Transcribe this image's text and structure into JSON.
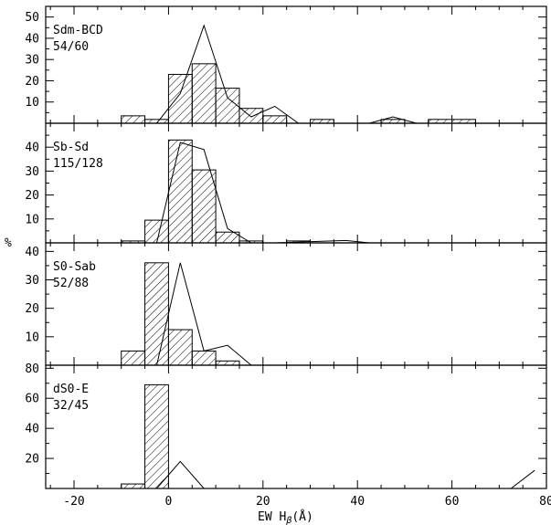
{
  "chart_data": {
    "type": "bar",
    "xlabel": "EW H",
    "xlabel_sub": "β",
    "xlabel_unit": "(Å)",
    "ylabel": "%",
    "xlim": [
      -26,
      80
    ],
    "bin_width": 5,
    "x_ticks": [
      -20,
      0,
      20,
      40,
      60,
      80
    ],
    "panels": [
      {
        "label": "Sdm-BCD",
        "count": "54/60",
        "ylim": [
          0,
          55
        ],
        "y_ticks": [
          10,
          20,
          30,
          40,
          50
        ],
        "bars": [
          {
            "x0": -10,
            "x1": -5,
            "value": 3.5
          },
          {
            "x0": -5,
            "x1": 0,
            "value": 1.8
          },
          {
            "x0": 0,
            "x1": 5,
            "value": 23
          },
          {
            "x0": 5,
            "x1": 10,
            "value": 28
          },
          {
            "x0": 10,
            "x1": 15,
            "value": 16.5
          },
          {
            "x0": 15,
            "x1": 20,
            "value": 7
          },
          {
            "x0": 20,
            "x1": 25,
            "value": 3.5
          },
          {
            "x0": 30,
            "x1": 35,
            "value": 1.8
          },
          {
            "x0": 45,
            "x1": 50,
            "value": 1.8
          },
          {
            "x0": 55,
            "x1": 65,
            "value": 1.8
          }
        ],
        "line": [
          [
            -2.5,
            0
          ],
          [
            2.5,
            14
          ],
          [
            7.5,
            46
          ],
          [
            12.5,
            12
          ],
          [
            17.5,
            3
          ],
          [
            22.5,
            8
          ],
          [
            27.5,
            0
          ],
          [
            42.5,
            0
          ],
          [
            47.5,
            3
          ],
          [
            52.5,
            0
          ]
        ]
      },
      {
        "label": "Sb-Sd",
        "count": "115/128",
        "ylim": [
          0,
          50
        ],
        "y_ticks": [
          10,
          20,
          30,
          40
        ],
        "bars": [
          {
            "x0": -10,
            "x1": -5,
            "value": 0.8
          },
          {
            "x0": -5,
            "x1": 0,
            "value": 9.5
          },
          {
            "x0": 0,
            "x1": 5,
            "value": 43
          },
          {
            "x0": 5,
            "x1": 10,
            "value": 30.5
          },
          {
            "x0": 10,
            "x1": 15,
            "value": 4.5
          },
          {
            "x0": 15,
            "x1": 20,
            "value": 0.8
          },
          {
            "x0": 25,
            "x1": 30,
            "value": 0.8
          }
        ],
        "line": [
          [
            -2.5,
            0
          ],
          [
            2.5,
            42
          ],
          [
            7.5,
            39
          ],
          [
            12.5,
            6
          ],
          [
            17.5,
            0
          ],
          [
            22.5,
            0
          ],
          [
            37.5,
            1
          ],
          [
            42.5,
            0
          ]
        ]
      },
      {
        "label": "S0-Sab",
        "count": "52/88",
        "ylim": [
          0,
          43
        ],
        "y_ticks": [
          10,
          20,
          30,
          40
        ],
        "bars": [
          {
            "x0": -10,
            "x1": -5,
            "value": 5
          },
          {
            "x0": -5,
            "x1": 0,
            "value": 36
          },
          {
            "x0": 0,
            "x1": 5,
            "value": 12.5
          },
          {
            "x0": 5,
            "x1": 10,
            "value": 5
          },
          {
            "x0": 10,
            "x1": 15,
            "value": 1.5
          }
        ],
        "line": [
          [
            -2.5,
            0
          ],
          [
            2.5,
            36
          ],
          [
            7.5,
            5
          ],
          [
            12.5,
            7
          ],
          [
            17.5,
            0
          ]
        ]
      },
      {
        "label": "dS0-E",
        "count": "32/45",
        "ylim": [
          0,
          82
        ],
        "y_ticks": [
          20,
          40,
          60,
          80
        ],
        "bars": [
          {
            "x0": -10,
            "x1": -5,
            "value": 3
          },
          {
            "x0": -5,
            "x1": 0,
            "value": 69
          }
        ],
        "line": [
          [
            -2.5,
            0
          ],
          [
            2.5,
            18
          ],
          [
            7.5,
            0
          ],
          [
            72.5,
            0
          ],
          [
            77.5,
            12
          ]
        ]
      }
    ]
  }
}
